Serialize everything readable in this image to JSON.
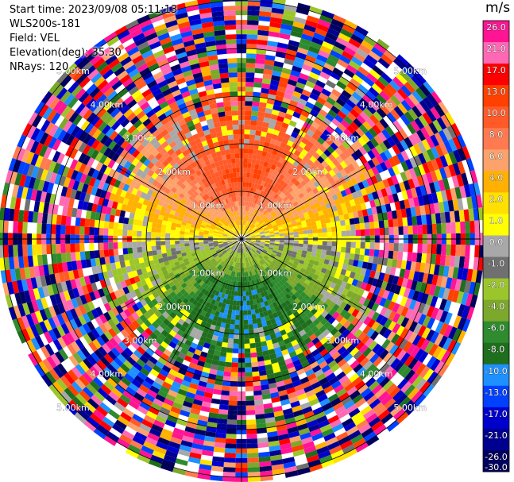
{
  "header": {
    "start_time": "Start time: 2023/09/08 05:11:13",
    "instrument": "WLS200s-181",
    "field": "Field: VEL",
    "elevation": "Elevation(deg): 35.30",
    "nrays": "NRays: 120"
  },
  "colorbar": {
    "unit": "m/s",
    "ticks": [
      "26.0",
      "21.0",
      "17.0",
      "13.0",
      "10.0",
      "8.0",
      "6.0",
      "4.0",
      "2.0",
      "1.0",
      "0.0",
      "-1.0",
      "-2.0",
      "-4.0",
      "-6.0",
      "-8.0",
      "-10.0",
      "-13.0",
      "-17.0",
      "-21.0",
      "-26.0",
      "-30.0"
    ],
    "colors": [
      "#ff1493",
      "#ff69b4",
      "#ff0000",
      "#ff4000",
      "#ff5a28",
      "#ff7a50",
      "#fda26b",
      "#ffb000",
      "#ffe000",
      "#ffff00",
      "#a8a8a8",
      "#707070",
      "#9bc62b",
      "#7ca82b",
      "#2e8b2e",
      "#1e6e1e",
      "#1e90ff",
      "#0040ff",
      "#0000cd",
      "#000090",
      "#000060"
    ]
  },
  "chart_data": {
    "type": "heatmap",
    "subtype": "PPI polar velocity scan",
    "field": "VEL",
    "units": "m/s",
    "n_rays": 120,
    "elevation_deg": 35.3,
    "range_rings_km": [
      1.0,
      2.0,
      3.0,
      4.0,
      5.0
    ],
    "ring_labels": [
      "1.00km",
      "2.00km",
      "3.00km",
      "4.00km",
      "5.00km"
    ],
    "color_scale": [
      -30.0,
      26.0
    ],
    "regions": [
      {
        "description": "positive velocities (toward north)",
        "range_km": [
          0.2,
          2.5
        ],
        "value_ms": 10.0
      },
      {
        "description": "negative velocities (toward south)",
        "range_km": [
          0.2,
          2.5
        ],
        "value_ms": -10.0
      },
      {
        "description": "noise beyond ~2.5 km",
        "range_km": [
          2.5,
          5.1
        ],
        "value_ms": null
      }
    ]
  }
}
